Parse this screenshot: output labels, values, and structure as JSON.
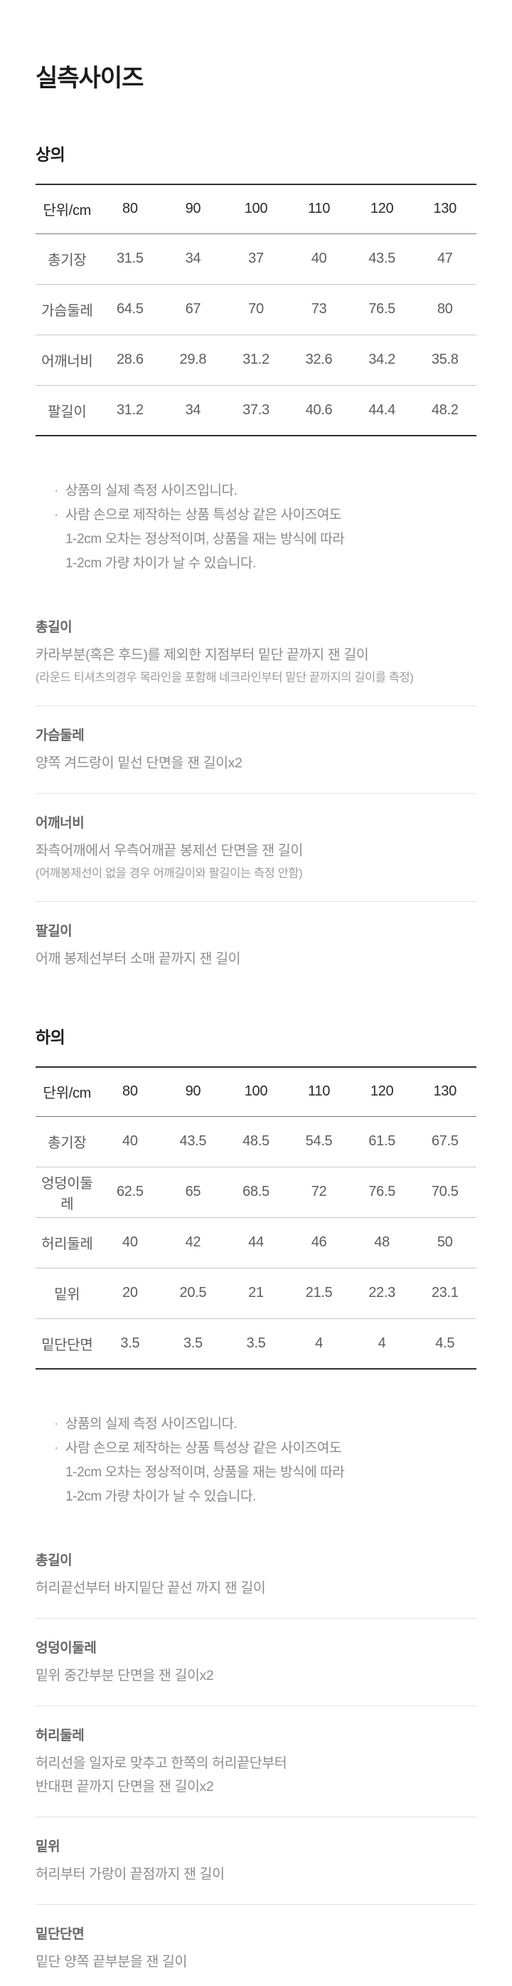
{
  "page": {
    "title": "실측사이즈"
  },
  "colors": {
    "table_border": "#303030",
    "row_divider": "#c7c7c7",
    "definition_divider": "#e3e3e3",
    "heading_text": "#1a1a1a",
    "table_value_text": "#5d5d5d",
    "body_text": "#8d8d8d"
  },
  "tops": {
    "heading": "상의",
    "table": {
      "corner": "단위/cm",
      "columns": [
        "80",
        "90",
        "100",
        "110",
        "120",
        "130"
      ],
      "rows": [
        {
          "label": "총기장",
          "values": [
            "31.5",
            "34",
            "37",
            "40",
            "43.5",
            "47"
          ]
        },
        {
          "label": "가슴둘레",
          "values": [
            "64.5",
            "67",
            "70",
            "73",
            "76.5",
            "80"
          ]
        },
        {
          "label": "어깨너비",
          "values": [
            "28.6",
            "29.8",
            "31.2",
            "32.6",
            "34.2",
            "35.8"
          ]
        },
        {
          "label": "팔길이",
          "values": [
            "31.2",
            "34",
            "37.3",
            "40.6",
            "44.4",
            "48.2"
          ]
        }
      ]
    },
    "notes": [
      {
        "bullet": "·",
        "text": "상품의 실제 측정 사이즈입니다."
      },
      {
        "bullet": "·",
        "text": "사람 손으로 제작하는 상품 특성상 같은 사이즈여도"
      },
      {
        "bullet": "",
        "text": "1-2cm 오차는 정상적이며, 상품을 재는 방식에 따라"
      },
      {
        "bullet": "",
        "text": "1-2cm 가량 차이가 날 수 있습니다."
      }
    ],
    "definitions": [
      {
        "term": "총길이",
        "desc": "카라부분(혹은 후드)를 제외한 지점부터 밑단 끝까지 잰 길이",
        "sub": "(라운드 티셔츠의경우 목라인을 포함해 네크라인부터 밑단 끝까지의 길이를 측정)"
      },
      {
        "term": "가슴둘레",
        "desc": "양쪽 겨드랑이 밑선 단면을 잰 길이x2"
      },
      {
        "term": "어깨너비",
        "desc": "좌측어깨에서 우측어깨끝 봉제선 단면을 잰 길이",
        "sub": "(어깨봉제선이 없을 경우 어깨길이와 팔길이는 측정 안함)"
      },
      {
        "term": "팔길이",
        "desc": "어깨 봉제선부터 소매 끝까지 잰 길이"
      }
    ]
  },
  "bottoms": {
    "heading": "하의",
    "table": {
      "corner": "단위/cm",
      "columns": [
        "80",
        "90",
        "100",
        "110",
        "120",
        "130"
      ],
      "rows": [
        {
          "label": "총기장",
          "values": [
            "40",
            "43.5",
            "48.5",
            "54.5",
            "61.5",
            "67.5"
          ]
        },
        {
          "label": "엉덩이둘레",
          "values": [
            "62.5",
            "65",
            "68.5",
            "72",
            "76.5",
            "70.5"
          ]
        },
        {
          "label": "허리둘레",
          "values": [
            "40",
            "42",
            "44",
            "46",
            "48",
            "50"
          ]
        },
        {
          "label": "밑위",
          "values": [
            "20",
            "20.5",
            "21",
            "21.5",
            "22.3",
            "23.1"
          ]
        },
        {
          "label": "밑단단면",
          "values": [
            "3.5",
            "3.5",
            "3.5",
            "4",
            "4",
            "4.5"
          ]
        }
      ]
    },
    "notes": [
      {
        "bullet": "·",
        "text": "상품의 실제 측정 사이즈입니다."
      },
      {
        "bullet": "·",
        "text": "사람 손으로 제작하는 상품 특성상 같은 사이즈여도"
      },
      {
        "bullet": "",
        "text": "1-2cm 오차는 정상적이며, 상품을 재는 방식에 따라"
      },
      {
        "bullet": "",
        "text": "1-2cm 가량 차이가 날 수 있습니다."
      }
    ],
    "definitions": [
      {
        "term": "총길이",
        "desc": "허리끝선부터 바지밑단 끝선 까지 잰 길이"
      },
      {
        "term": "엉덩이둘레",
        "desc": "밑위 중간부분 단면을 잰 길이x2"
      },
      {
        "term": "허리둘레",
        "desc": "허리선을 일자로 맞추고 한쪽의 허리끝단부터",
        "desc2": "반대편 끝까지 단면을 잰 길이x2"
      },
      {
        "term": "밑위",
        "desc": "허리부터 가랑이 끝점까지 잰 길이"
      },
      {
        "term": "밑단단면",
        "desc": "밑단 양쪽 끝부분을 잰 길이"
      }
    ]
  }
}
